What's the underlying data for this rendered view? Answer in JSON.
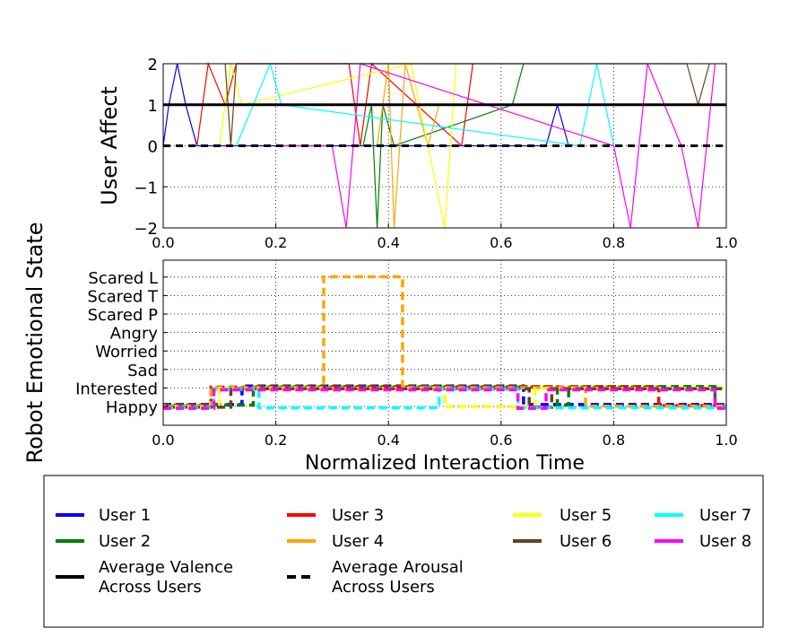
{
  "chart_data": [
    {
      "type": "line",
      "ylabel": "User Affect",
      "xlim": [
        0.0,
        1.0
      ],
      "ylim": [
        -2,
        2
      ],
      "xticks": [
        "0.0",
        "0.2",
        "0.4",
        "0.6",
        "0.8",
        "1.0"
      ],
      "yticks": [
        "−2",
        "−1",
        "0",
        "1",
        "2"
      ],
      "grid": true,
      "series": [
        {
          "name": "User 1",
          "color": "#0000ff",
          "style": "solid",
          "x": [
            0.0,
            0.01,
            0.025,
            0.04,
            0.06,
            0.68,
            0.7,
            0.72
          ],
          "y": [
            0,
            1,
            2,
            1,
            0,
            0,
            1,
            0
          ]
        },
        {
          "name": "User 2",
          "color": "#008000",
          "style": "solid",
          "x": [
            0.355,
            0.37,
            0.38,
            0.39,
            0.41,
            0.62,
            0.64
          ],
          "y": [
            0,
            1,
            -2,
            1,
            0,
            1,
            2
          ]
        },
        {
          "name": "User 3",
          "color": "#ff0000",
          "style": "solid",
          "x": [
            0.06,
            0.08,
            0.11,
            0.13,
            0.33,
            0.35,
            0.37,
            0.53,
            0.55
          ],
          "y": [
            0,
            2,
            1,
            2,
            2,
            0,
            2,
            0,
            2
          ]
        },
        {
          "name": "User 4",
          "color": "#ffa500",
          "style": "solid",
          "x": [
            0.38,
            0.4,
            0.41,
            0.43,
            0.47,
            0.49
          ],
          "y": [
            0,
            2,
            -2,
            2,
            0,
            1
          ]
        },
        {
          "name": "User 5",
          "color": "#ffff00",
          "style": "solid",
          "x": [
            0.1,
            0.12,
            0.14,
            0.44,
            0.47,
            0.5,
            0.52
          ],
          "y": [
            0,
            2,
            1,
            2,
            0,
            -2,
            2
          ]
        },
        {
          "name": "User 6",
          "color": "#654321",
          "style": "solid",
          "x": [
            0.11,
            0.12,
            0.13,
            0.93,
            0.95,
            0.97
          ],
          "y": [
            2,
            0,
            2,
            2,
            1,
            2
          ]
        },
        {
          "name": "User 7",
          "color": "#00ffff",
          "style": "solid",
          "x": [
            0.13,
            0.16,
            0.19,
            0.21,
            0.74,
            0.77,
            0.8
          ],
          "y": [
            0,
            1,
            2,
            1,
            0,
            2,
            0
          ]
        },
        {
          "name": "User 8",
          "color": "#ff00ff",
          "style": "solid",
          "x": [
            0.2,
            0.3,
            0.325,
            0.35,
            0.8,
            0.83,
            0.86,
            0.92,
            0.95,
            0.98
          ],
          "y": [
            0,
            0,
            -2,
            2,
            0,
            -2,
            2,
            0,
            -2,
            2
          ]
        },
        {
          "name": "Average Valence Across Users",
          "color": "#000000",
          "style": "solid",
          "x": [
            0.0,
            1.0
          ],
          "y": [
            1,
            1
          ]
        },
        {
          "name": "Average Arousal Across Users",
          "color": "#000000",
          "style": "dashed",
          "x": [
            0.0,
            1.0
          ],
          "y": [
            0,
            0
          ]
        }
      ]
    },
    {
      "type": "line",
      "ylabel": "Robot Emotional State",
      "xlabel": "Normalized Interaction Time",
      "xlim": [
        0.0,
        1.0
      ],
      "xticks": [
        "0.0",
        "0.2",
        "0.4",
        "0.6",
        "0.8",
        "1.0"
      ],
      "categories": [
        "Happy",
        "Interested",
        "Sad",
        "Worried",
        "Angry",
        "Scared P",
        "Scared T",
        "Scared L"
      ],
      "grid": true,
      "series": [
        {
          "name": "User 1",
          "color": "#0000ff",
          "x": [
            0.0,
            0.14,
            0.14,
            0.15,
            0.15,
            0.49,
            0.49,
            0.64,
            0.64,
            1.0
          ],
          "y": [
            0,
            0,
            1,
            1,
            1,
            1,
            1,
            1,
            0,
            0
          ]
        },
        {
          "name": "User 2",
          "color": "#008000",
          "x": [
            0.0,
            0.16,
            0.16,
            0.7,
            0.7,
            0.72,
            0.72,
            0.98,
            0.98,
            1.0
          ],
          "y": [
            0,
            0,
            1,
            1,
            0,
            0,
            1,
            1,
            0,
            0
          ]
        },
        {
          "name": "User 3",
          "color": "#ff0000",
          "x": [
            0.0,
            0.085,
            0.085,
            0.88,
            0.88,
            1.0
          ],
          "y": [
            0,
            0,
            1,
            1,
            0,
            0
          ]
        },
        {
          "name": "User 4",
          "color": "#ffa500",
          "x": [
            0.0,
            0.085,
            0.085,
            0.285,
            0.285,
            0.425,
            0.425,
            0.75,
            0.75,
            1.0
          ],
          "y": [
            0,
            0,
            1,
            1,
            7,
            7,
            1,
            1,
            0,
            0
          ]
        },
        {
          "name": "User 5",
          "color": "#ffff00",
          "x": [
            0.0,
            0.1,
            0.1,
            0.5,
            0.5,
            0.66,
            0.66,
            1.0
          ],
          "y": [
            0,
            0,
            1,
            1,
            0,
            0,
            1,
            1
          ]
        },
        {
          "name": "User 6",
          "color": "#654321",
          "x": [
            0.0,
            0.12,
            0.12,
            0.65,
            0.65,
            0.69,
            0.69,
            1.0
          ],
          "y": [
            0,
            0,
            1,
            1,
            0,
            0,
            1,
            1
          ]
        },
        {
          "name": "User 7",
          "color": "#00ffff",
          "x": [
            0.0,
            0.09,
            0.09,
            0.17,
            0.17,
            0.42,
            0.42,
            0.49,
            0.49,
            0.63,
            0.63,
            1.0
          ],
          "y": [
            0,
            0,
            1,
            1,
            0,
            0,
            0,
            0,
            1,
            1,
            0,
            0
          ]
        },
        {
          "name": "User 8",
          "color": "#ff00ff",
          "x": [
            0.0,
            0.09,
            0.09,
            0.63,
            0.63,
            0.68,
            0.68,
            0.98,
            0.98,
            1.0
          ],
          "y": [
            0,
            0,
            1,
            1,
            0,
            0,
            1,
            1,
            0,
            0
          ]
        }
      ]
    }
  ],
  "legend": {
    "placement": "bottom",
    "entries": [
      {
        "label": "User 1",
        "color": "#0000ff",
        "style": "solid"
      },
      {
        "label": "User 2",
        "color": "#008000",
        "style": "solid"
      },
      {
        "label": "Average Valence Across Users",
        "lines": [
          "Average Valence",
          "Across Users"
        ],
        "color": "#000000",
        "style": "solid"
      },
      {
        "label": "User 3",
        "color": "#ff0000",
        "style": "solid"
      },
      {
        "label": "User 4",
        "color": "#ffa500",
        "style": "solid"
      },
      {
        "label": "Average Arousal Across Users",
        "lines": [
          "Average Arousal",
          "Across Users"
        ],
        "color": "#000000",
        "style": "dashed"
      },
      {
        "label": "User 5",
        "color": "#ffff00",
        "style": "solid"
      },
      {
        "label": "User 6",
        "color": "#654321",
        "style": "solid"
      },
      {
        "label": "User 7",
        "color": "#00ffff",
        "style": "solid"
      },
      {
        "label": "User 8",
        "color": "#ff00ff",
        "style": "solid"
      }
    ]
  }
}
